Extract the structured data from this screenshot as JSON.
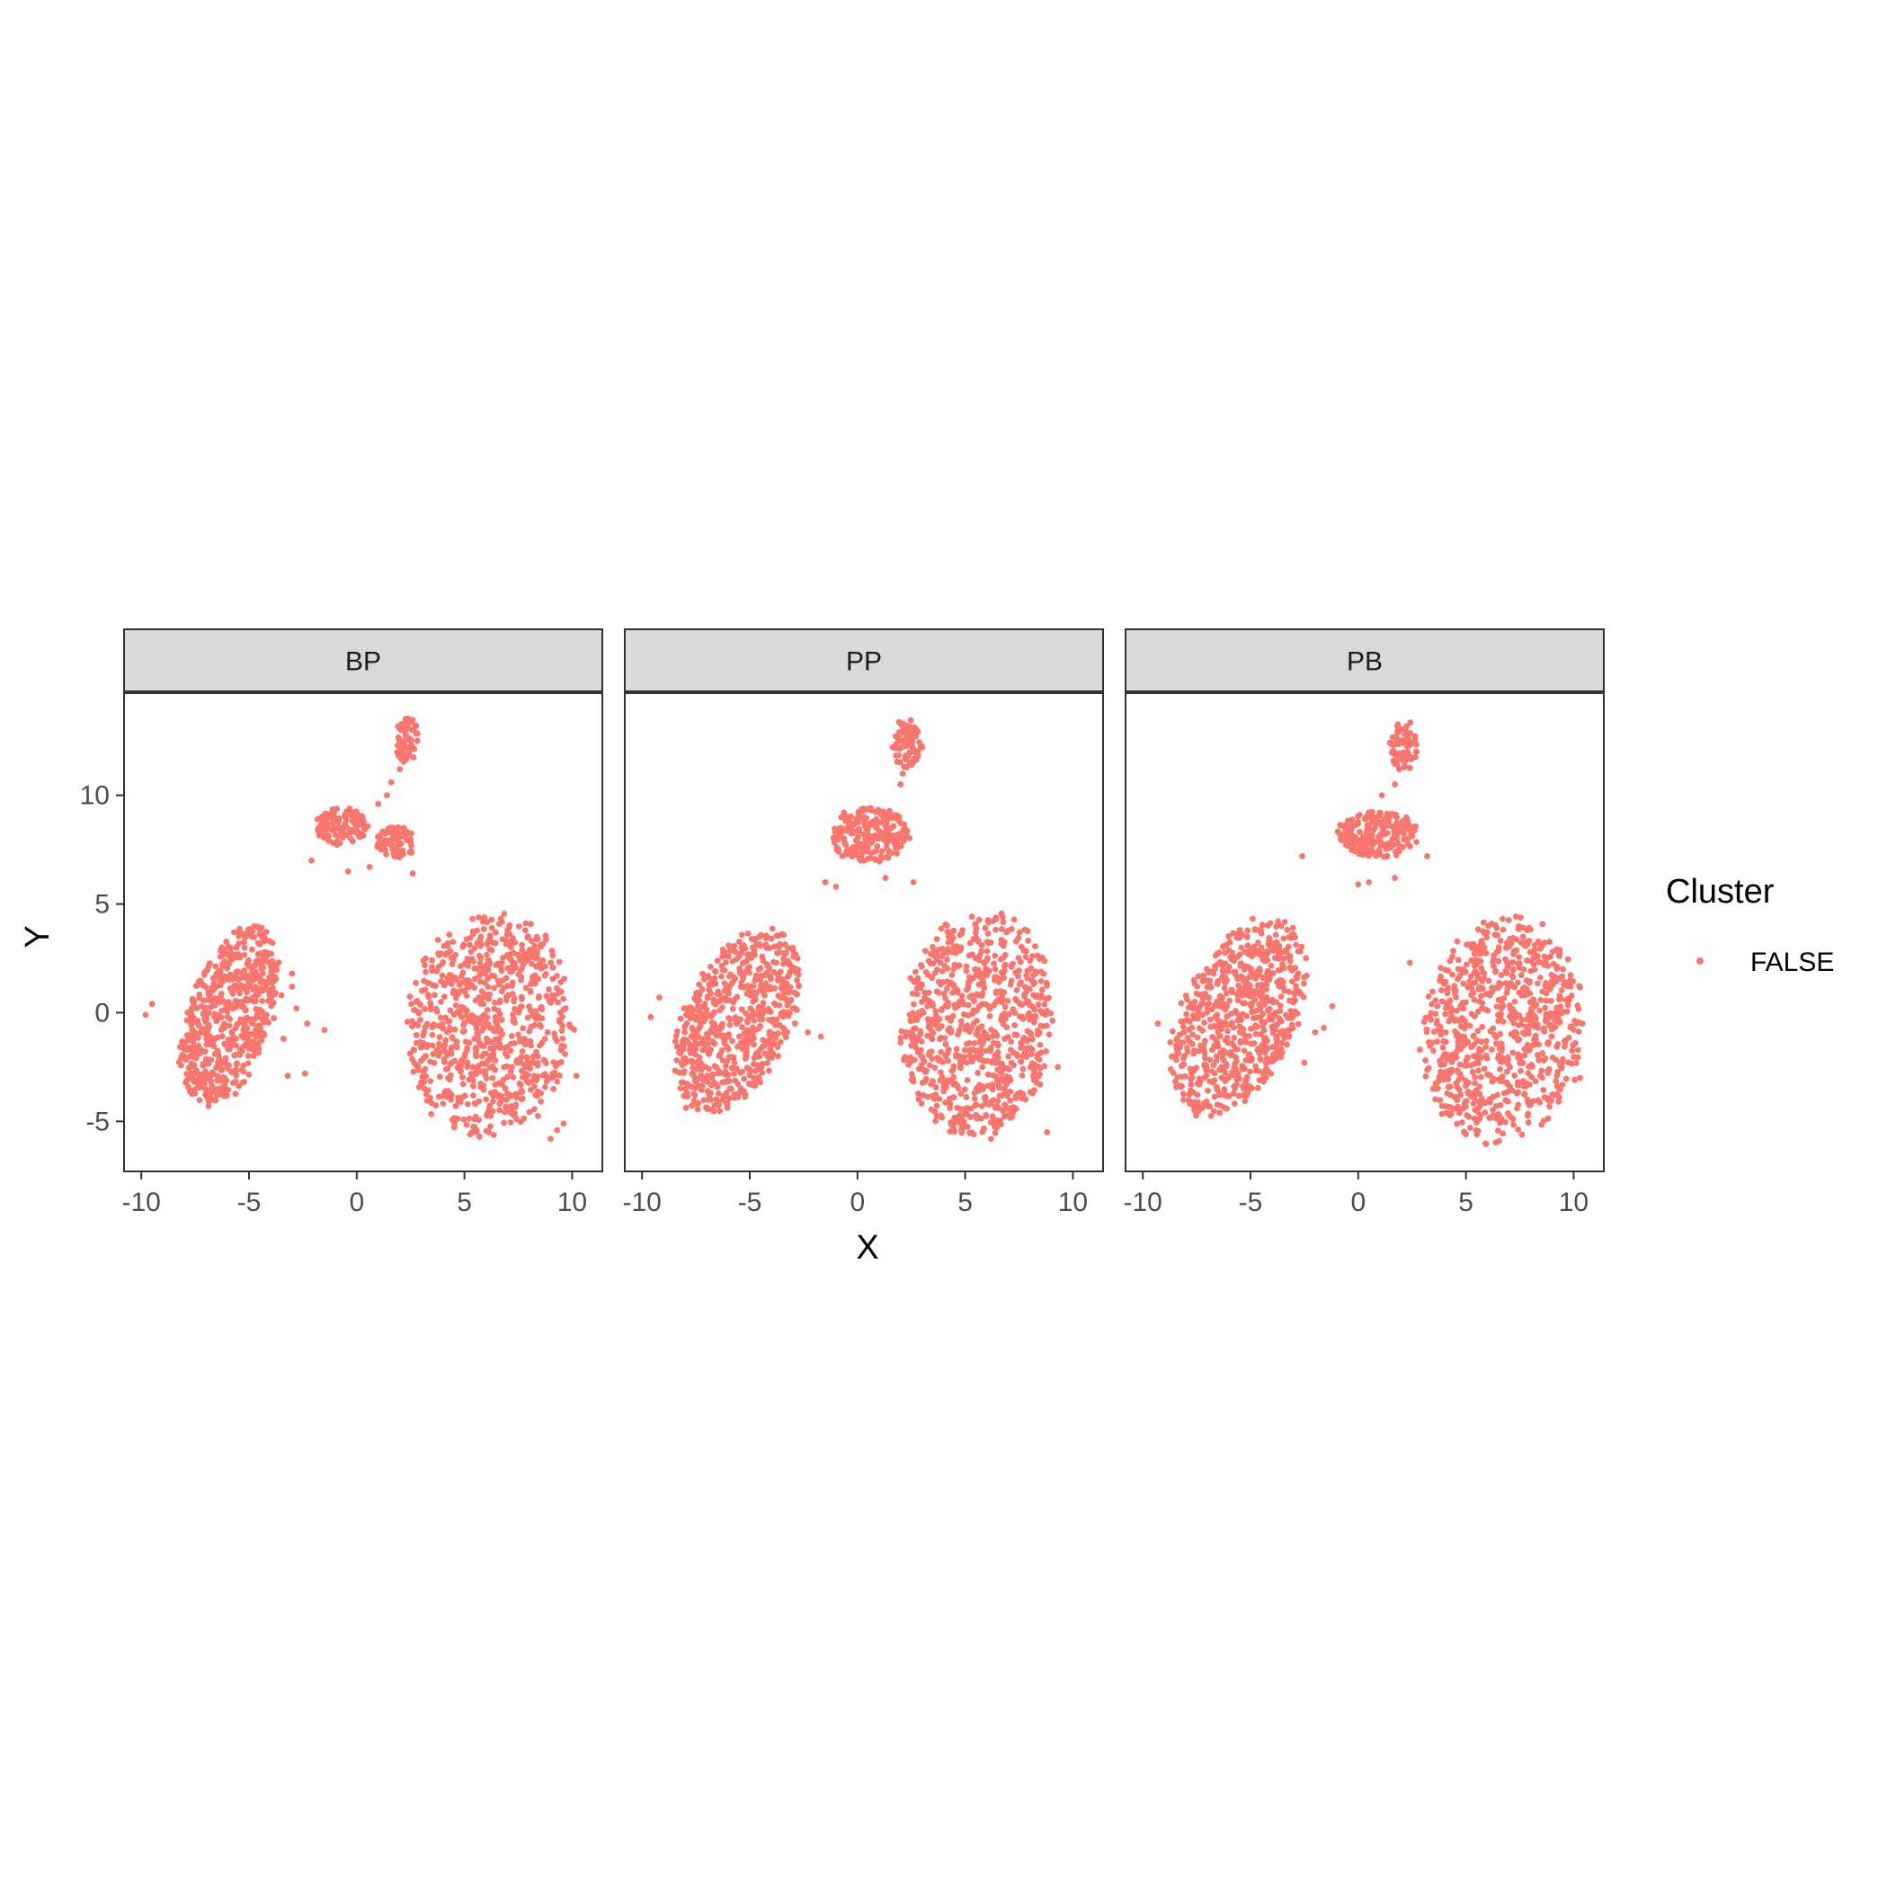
{
  "chart_data": {
    "type": "scatter",
    "facet_type": "panels",
    "xlabel": "X",
    "ylabel": "Y",
    "xlim": [
      -10.8,
      11.4
    ],
    "ylim": [
      -7.3,
      14.7
    ],
    "x_ticks": [
      -10,
      -5,
      0,
      5,
      10
    ],
    "x_tick_labels": [
      "-10",
      "-5",
      "0",
      "5",
      "10"
    ],
    "y_ticks": [
      -5,
      0,
      5,
      10
    ],
    "y_tick_labels": [
      "-5",
      "0",
      "5",
      "10"
    ],
    "grid": false,
    "point_color": "#F8766D",
    "strip_fill": "#D9D9D9",
    "legend": {
      "title": "Cluster",
      "position": "right",
      "entries": [
        {
          "label": "FALSE",
          "color": "#F8766D"
        }
      ]
    },
    "facets": [
      {
        "label": "BP",
        "clusters": [
          {
            "cx": -5.9,
            "cy": -0.2,
            "rx": 2.0,
            "ry": 4.4,
            "rot": 18,
            "n": 600,
            "stray": [
              [
                -3.5,
                0.8
              ],
              [
                -3.0,
                1.2
              ],
              [
                -2.8,
                0.2
              ],
              [
                -3.4,
                -1.2
              ],
              [
                -2.3,
                -0.5
              ],
              [
                -3.2,
                -2.9
              ],
              [
                -2.4,
                -2.8
              ],
              [
                -9.8,
                -0.1
              ],
              [
                -9.5,
                0.4
              ],
              [
                -1.5,
                -0.8
              ],
              [
                -3.0,
                1.8
              ]
            ]
          },
          {
            "cx": 6.2,
            "cy": -0.6,
            "rx": 3.9,
            "ry": 5.3,
            "rot": 8,
            "n": 800,
            "stray": [
              [
                9.3,
                -5.4
              ],
              [
                9.0,
                -5.8
              ],
              [
                9.6,
                -5.1
              ],
              [
                10.2,
                -2.9
              ],
              [
                3.2,
                2.5
              ]
            ]
          },
          {
            "cx": -0.7,
            "cy": 8.6,
            "rx": 1.2,
            "ry": 0.9,
            "rot": 0,
            "n": 130,
            "stray": [
              [
                -2.1,
                7.0
              ],
              [
                -0.4,
                6.5
              ],
              [
                0.6,
                6.7
              ]
            ]
          },
          {
            "cx": 1.8,
            "cy": 7.8,
            "rx": 0.9,
            "ry": 0.8,
            "rot": 0,
            "n": 80,
            "stray": [
              [
                2.6,
                6.4
              ],
              [
                1.4,
                10.0
              ],
              [
                1.0,
                9.6
              ]
            ]
          },
          {
            "cx": 2.3,
            "cy": 12.6,
            "rx": 0.6,
            "ry": 1.1,
            "rot": 0,
            "n": 70,
            "stray": [
              [
                2.0,
                11.2
              ],
              [
                1.6,
                10.6
              ]
            ]
          }
        ]
      },
      {
        "label": "PP",
        "clusters": [
          {
            "cx": -5.6,
            "cy": -0.4,
            "rx": 2.5,
            "ry": 4.6,
            "rot": 25,
            "n": 650,
            "stray": [
              [
                -3.0,
                0.2
              ],
              [
                -2.9,
                -0.5
              ],
              [
                -1.7,
                -1.1
              ],
              [
                -2.3,
                -0.9
              ],
              [
                -9.6,
                -0.2
              ],
              [
                -9.2,
                0.7
              ],
              [
                -3.4,
                1.0
              ]
            ]
          },
          {
            "cx": 5.6,
            "cy": -0.6,
            "rx": 3.6,
            "ry": 5.3,
            "rot": 6,
            "n": 800,
            "stray": [
              [
                5.4,
                -5.6
              ],
              [
                6.2,
                -5.8
              ],
              [
                9.3,
                -2.5
              ],
              [
                8.8,
                -5.5
              ]
            ]
          },
          {
            "cx": 0.6,
            "cy": 8.2,
            "rx": 1.9,
            "ry": 1.3,
            "rot": 0,
            "n": 220,
            "stray": [
              [
                -1.5,
                6.0
              ],
              [
                -1.0,
                5.8
              ],
              [
                1.3,
                6.2
              ],
              [
                2.6,
                6.0
              ],
              [
                -0.7,
                7.2
              ]
            ]
          },
          {
            "cx": 2.3,
            "cy": 12.4,
            "rx": 0.75,
            "ry": 1.2,
            "rot": 0,
            "n": 80,
            "stray": [
              [
                2.0,
                10.5
              ],
              [
                2.1,
                11.0
              ]
            ]
          }
        ]
      },
      {
        "label": "PB",
        "clusters": [
          {
            "cx": -5.6,
            "cy": -0.2,
            "rx": 2.7,
            "ry": 5.0,
            "rot": 25,
            "n": 700,
            "stray": [
              [
                -2.0,
                -0.9
              ],
              [
                -1.6,
                -0.7
              ],
              [
                -2.4,
                1.7
              ],
              [
                -1.2,
                0.3
              ],
              [
                -2.5,
                -2.3
              ],
              [
                -9.3,
                -0.5
              ]
            ]
          },
          {
            "cx": 6.7,
            "cy": -0.8,
            "rx": 3.8,
            "ry": 5.3,
            "rot": 8,
            "n": 800,
            "stray": [
              [
                10.3,
                -3.0
              ],
              [
                5.0,
                -5.6
              ],
              [
                2.4,
                2.3
              ]
            ]
          },
          {
            "cx": 0.9,
            "cy": 8.2,
            "rx": 2.0,
            "ry": 1.1,
            "rot": 0,
            "n": 210,
            "stray": [
              [
                -2.6,
                7.2
              ],
              [
                0.5,
                6.0
              ],
              [
                1.7,
                6.2
              ],
              [
                3.2,
                7.2
              ],
              [
                0.0,
                5.9
              ]
            ]
          },
          {
            "cx": 2.1,
            "cy": 12.3,
            "rx": 0.65,
            "ry": 1.2,
            "rot": 0,
            "n": 75,
            "stray": [
              [
                1.7,
                10.5
              ],
              [
                1.1,
                10.0
              ],
              [
                1.9,
                11.2
              ]
            ]
          }
        ]
      }
    ]
  }
}
